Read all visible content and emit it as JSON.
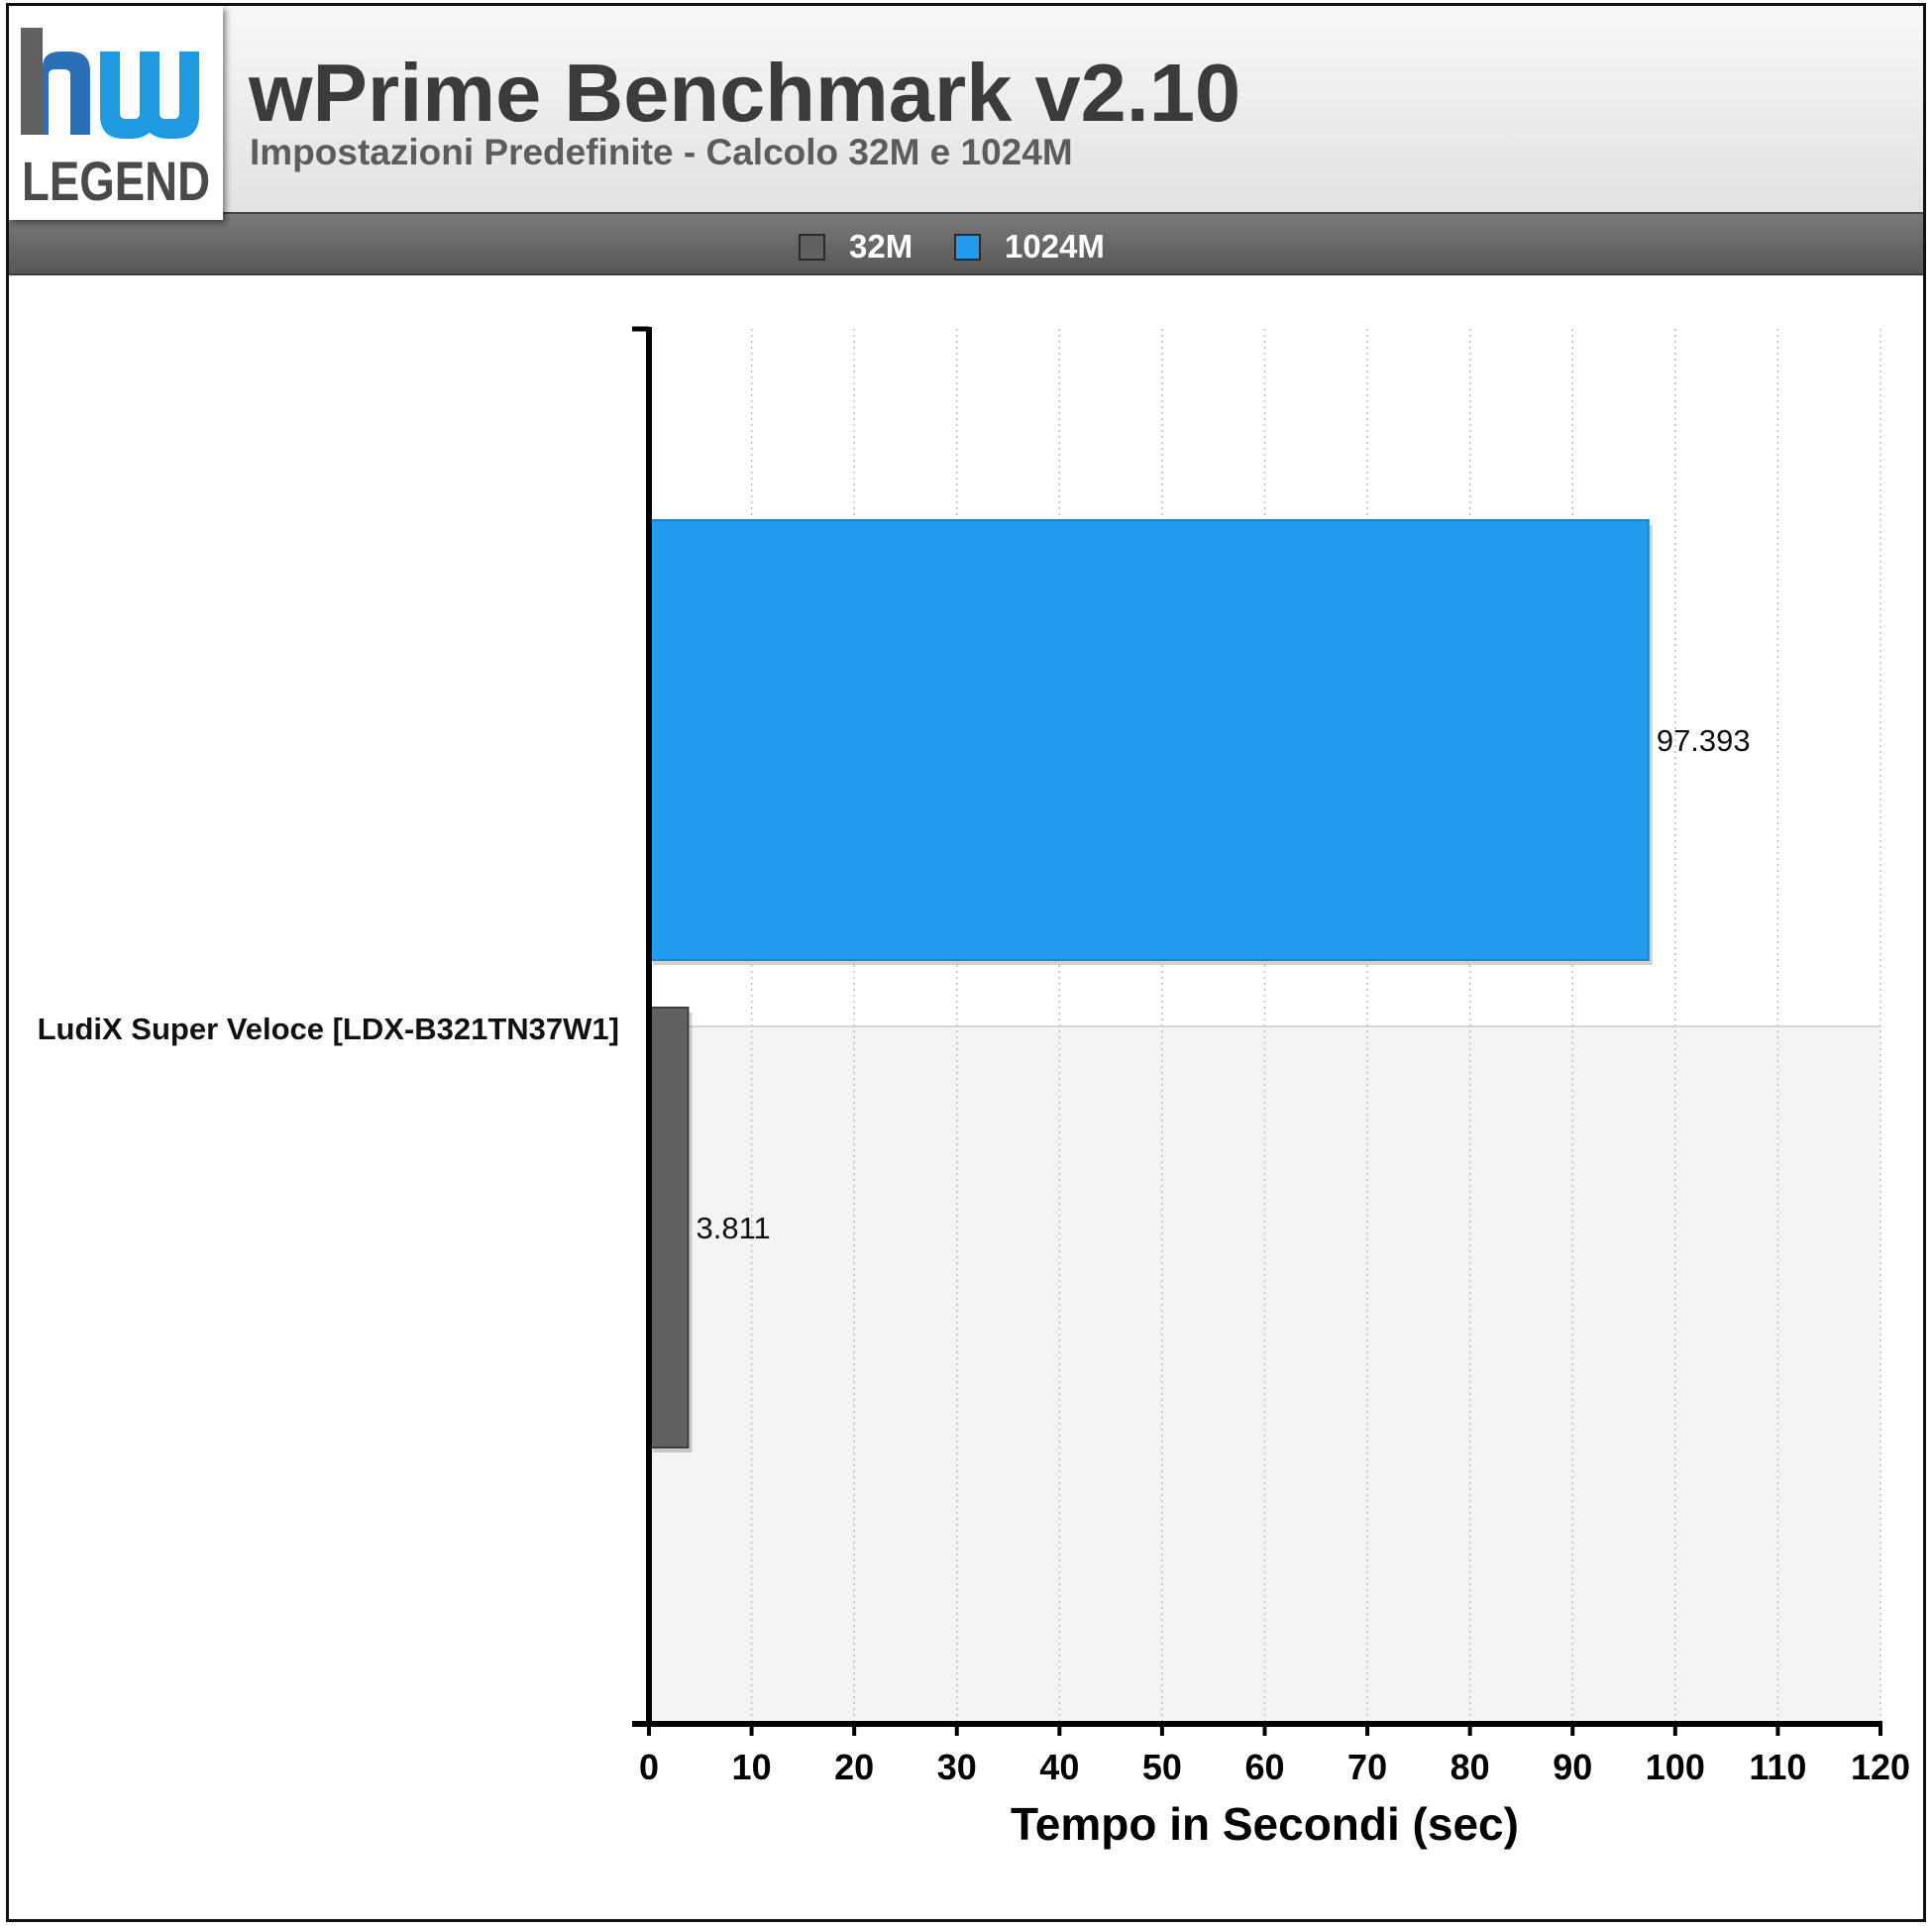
{
  "header": {
    "title": "wPrime Benchmark v2.10",
    "subtitle": "Impostazioni Predefinite - Calcolo 32M e 1024M",
    "logo_text": "hw LEGEND"
  },
  "legend": [
    {
      "label": "32M",
      "color": "#616161"
    },
    {
      "label": "1024M",
      "color": "#229cee"
    }
  ],
  "chart_data": {
    "type": "bar",
    "orientation": "horizontal",
    "title": "wPrime Benchmark v2.10",
    "subtitle": "Impostazioni Predefinite - Calcolo 32M e 1024M",
    "categories": [
      "LudiX Super Veloce [LDX-B321TN37W1]"
    ],
    "series": [
      {
        "name": "32M",
        "values": [
          3.811
        ],
        "labels": [
          "3.811"
        ],
        "color": "#616161"
      },
      {
        "name": "1024M",
        "values": [
          97.393
        ],
        "labels": [
          "97.393"
        ],
        "color": "#229cee"
      }
    ],
    "xlabel": "Tempo in Secondi (sec)",
    "ylabel": "",
    "xlim": [
      0,
      120
    ],
    "xticks": [
      0,
      10,
      20,
      30,
      40,
      50,
      60,
      70,
      80,
      90,
      100,
      110,
      120
    ],
    "xtick_labels": [
      "0",
      "10",
      "20",
      "30",
      "40",
      "50",
      "60",
      "70",
      "80",
      "90",
      "100",
      "110",
      "120"
    ],
    "grid": "vertical-dotted",
    "legend_position": "top"
  }
}
